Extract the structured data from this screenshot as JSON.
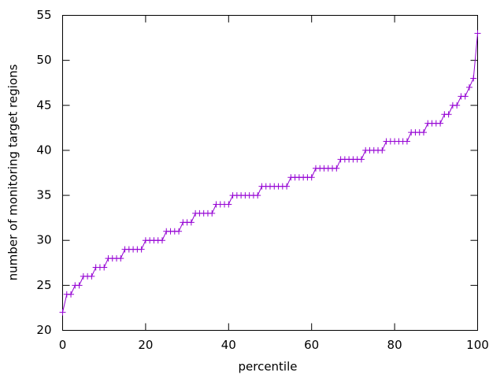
{
  "chart_data": {
    "type": "line",
    "xlabel": "percentile",
    "ylabel": "number of monitoring target regions",
    "x": [
      0,
      1,
      2,
      3,
      4,
      5,
      6,
      7,
      8,
      9,
      10,
      11,
      12,
      13,
      14,
      15,
      16,
      17,
      18,
      19,
      20,
      21,
      22,
      23,
      24,
      25,
      26,
      27,
      28,
      29,
      30,
      31,
      32,
      33,
      34,
      35,
      36,
      37,
      38,
      39,
      40,
      41,
      42,
      43,
      44,
      45,
      46,
      47,
      48,
      49,
      50,
      51,
      52,
      53,
      54,
      55,
      56,
      57,
      58,
      59,
      60,
      61,
      62,
      63,
      64,
      65,
      66,
      67,
      68,
      69,
      70,
      71,
      72,
      73,
      74,
      75,
      76,
      77,
      78,
      79,
      80,
      81,
      82,
      83,
      84,
      85,
      86,
      87,
      88,
      89,
      90,
      91,
      92,
      93,
      94,
      95,
      96,
      97,
      98,
      99,
      100
    ],
    "values": [
      22,
      24,
      24,
      25,
      25,
      26,
      26,
      26,
      27,
      27,
      27,
      28,
      28,
      28,
      28,
      29,
      29,
      29,
      29,
      29,
      30,
      30,
      30,
      30,
      30,
      31,
      31,
      31,
      31,
      32,
      32,
      32,
      33,
      33,
      33,
      33,
      33,
      34,
      34,
      34,
      34,
      35,
      35,
      35,
      35,
      35,
      35,
      35,
      36,
      36,
      36,
      36,
      36,
      36,
      36,
      37,
      37,
      37,
      37,
      37,
      37,
      38,
      38,
      38,
      38,
      38,
      38,
      39,
      39,
      39,
      39,
      39,
      39,
      40,
      40,
      40,
      40,
      40,
      41,
      41,
      41,
      41,
      41,
      41,
      42,
      42,
      42,
      42,
      43,
      43,
      43,
      43,
      44,
      44,
      45,
      45,
      46,
      46,
      47,
      48,
      53
    ],
    "color": "#9400d3",
    "marker": "+",
    "xlim": [
      0,
      100
    ],
    "xticks": [
      0,
      20,
      40,
      60,
      80,
      100
    ],
    "ylim": [
      20,
      55
    ],
    "yticks": [
      20,
      25,
      30,
      35,
      40,
      45,
      50,
      55
    ]
  }
}
